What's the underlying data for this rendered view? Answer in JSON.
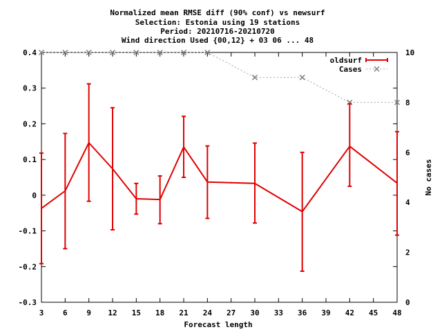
{
  "chart_data": {
    "type": "line",
    "title_lines": [
      "Normalized mean RMSE diff (90% conf) vs newsurf",
      "Selection: Estonia using    19 stations",
      "Period: 20210716-20210720",
      "Wind direction   Used {00,12} + 03 06 ... 48"
    ],
    "xlabel": "Forecast length",
    "ylabel": "",
    "y2label": "No cases",
    "x_ticks": [
      3,
      6,
      9,
      12,
      15,
      18,
      21,
      24,
      27,
      30,
      33,
      36,
      39,
      42,
      45,
      48
    ],
    "xlim": [
      3,
      48
    ],
    "y_ticks": [
      -0.3,
      -0.2,
      -0.1,
      0,
      0.1,
      0.2,
      0.3,
      0.4
    ],
    "y_tick_labels": [
      "-0.3",
      "-0.2",
      "-0.1",
      "0",
      "0.1",
      "0.2",
      "0.3",
      "0.4"
    ],
    "ylim": [
      -0.3,
      0.4
    ],
    "y2_ticks": [
      0,
      2,
      4,
      6,
      8,
      10
    ],
    "y2lim": [
      0,
      10
    ],
    "legend_position": "top-right",
    "series": [
      {
        "name": "oldsurf",
        "color": "#e00000",
        "axis": "y1",
        "x": [
          3,
          6,
          9,
          12,
          15,
          18,
          21,
          24,
          30,
          36,
          42,
          48
        ],
        "y": [
          -0.037,
          0.012,
          0.147,
          0.074,
          -0.01,
          -0.012,
          0.135,
          0.037,
          0.033,
          -0.046,
          0.137,
          0.034
        ],
        "ylow": [
          -0.192,
          -0.15,
          -0.017,
          -0.097,
          -0.053,
          -0.08,
          0.05,
          -0.065,
          -0.078,
          -0.213,
          0.025,
          -0.112
        ],
        "yhigh": [
          0.118,
          0.173,
          0.312,
          0.245,
          0.033,
          0.054,
          0.221,
          0.138,
          0.146,
          0.12,
          0.256,
          0.178
        ],
        "extra_line": {
          "x": [
            24,
            27,
            30
          ],
          "y": [
            0.037,
            0.035,
            0.033
          ]
        }
      },
      {
        "name": "Cases",
        "color": "#a0a0a0",
        "axis": "y2",
        "x": [
          3,
          6,
          9,
          12,
          15,
          18,
          21,
          24,
          30,
          36,
          42,
          48
        ],
        "y": [
          10,
          10,
          10,
          10,
          10,
          10,
          10,
          10,
          9,
          9,
          8,
          8
        ]
      }
    ]
  }
}
